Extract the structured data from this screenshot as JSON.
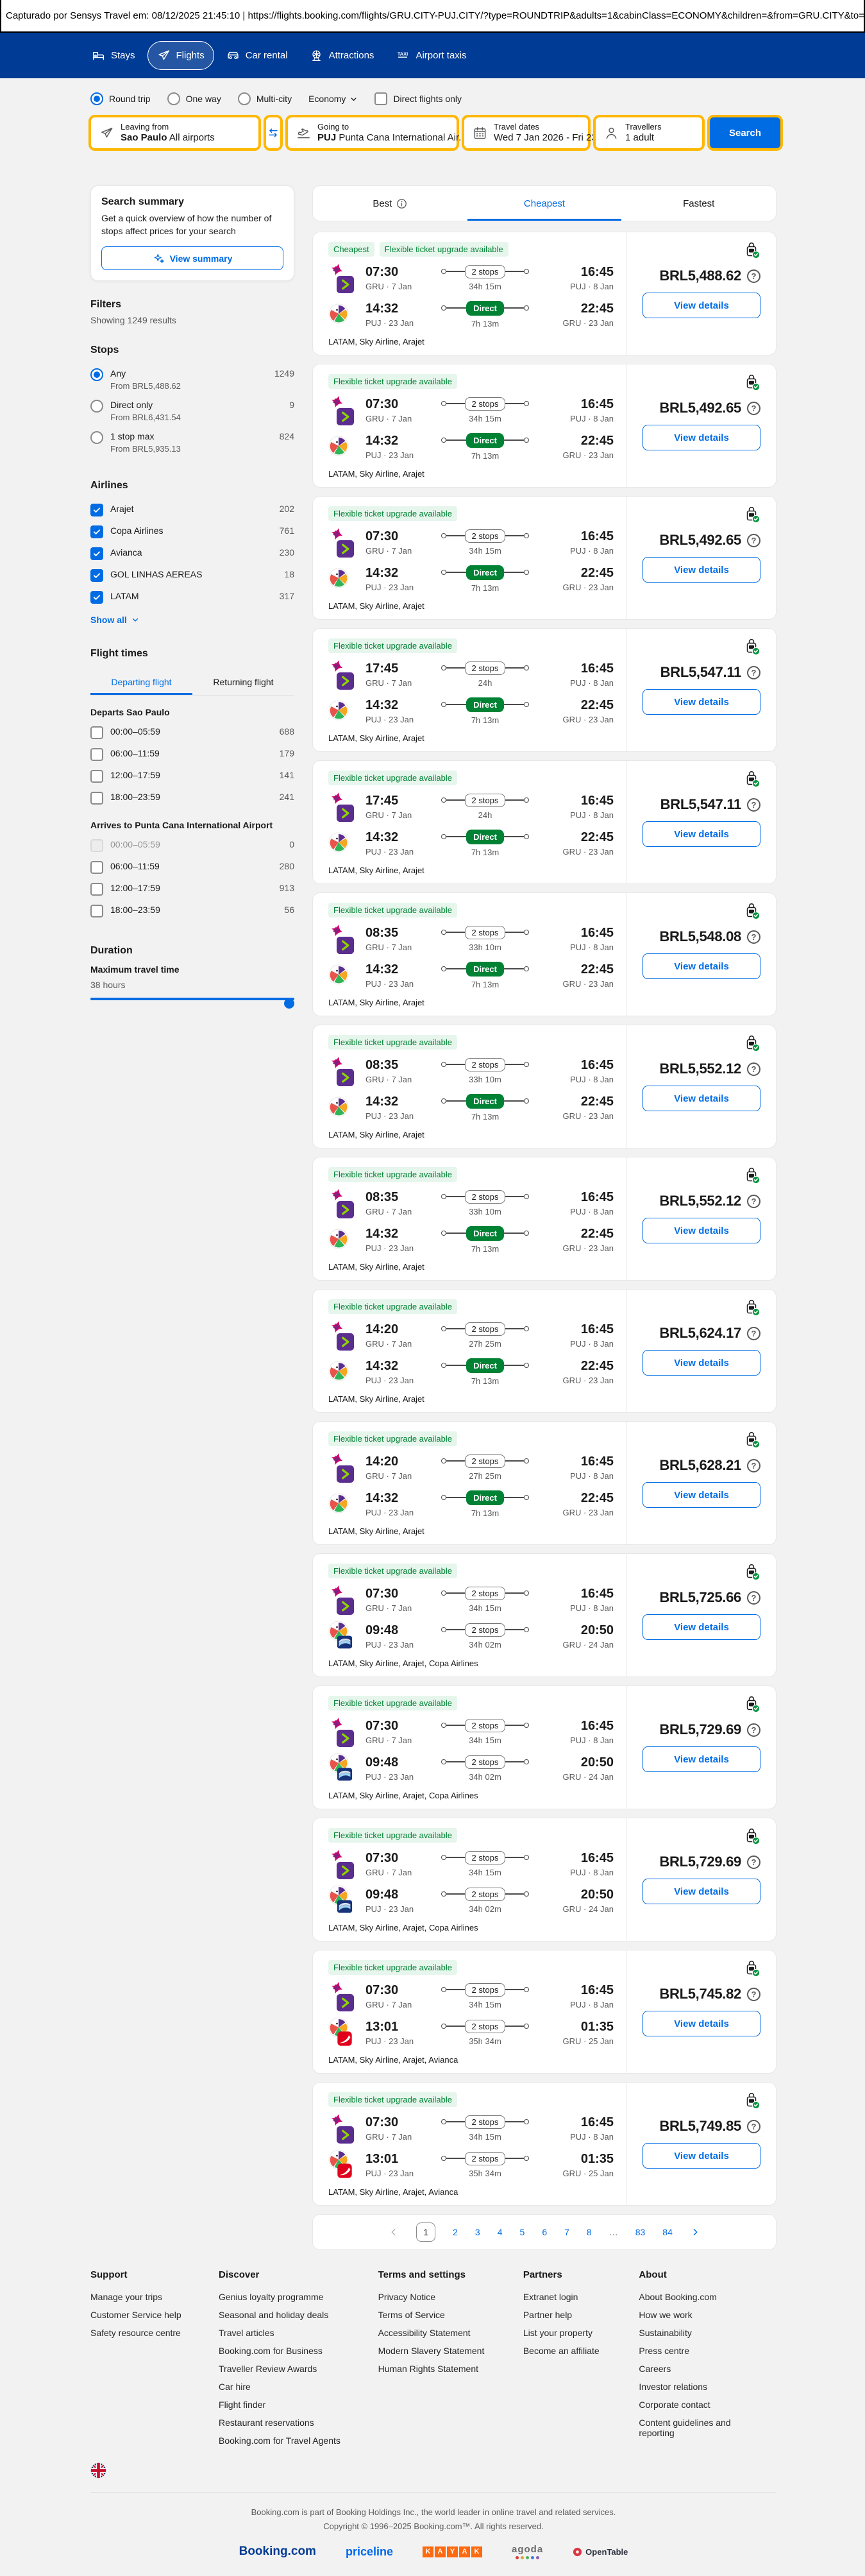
{
  "capture_bar": {
    "text": "Capturado por Sensys Travel em: 08/12/2025 21:45:10  |  https://flights.booking.com/flights/GRU.CITY-PUJ.CITY/?type=ROUNDTRIP&adults=1&cabinClass=ECONOMY&children=&from=GRU.CITY&to=PUJ.CITY"
  },
  "header": {
    "nav": [
      {
        "label": "Stays",
        "icon": "bed",
        "active": false
      },
      {
        "label": "Flights",
        "icon": "plane",
        "active": true
      },
      {
        "label": "Car rental",
        "icon": "car",
        "active": false
      },
      {
        "label": "Attractions",
        "icon": "ferris",
        "active": false
      },
      {
        "label": "Airport taxis",
        "icon": "taxi",
        "active": false
      }
    ]
  },
  "search": {
    "trip_types": [
      {
        "label": "Round trip",
        "selected": true
      },
      {
        "label": "One way",
        "selected": false
      },
      {
        "label": "Multi-city",
        "selected": false
      }
    ],
    "cabin_class": "Economy",
    "direct_only": "Direct flights only",
    "fields": {
      "from": {
        "label": "Leaving from",
        "value_bold": "Sao Paulo",
        "value_rest": "All airports"
      },
      "to": {
        "label": "Going to",
        "value_bold": "PUJ",
        "value_rest": "Punta Cana International Air..."
      },
      "dates": {
        "label": "Travel dates",
        "value": "Wed 7 Jan 2026 - Fri 23 ..."
      },
      "travellers": {
        "label": "Travellers",
        "value": "1 adult"
      }
    },
    "button": "Search"
  },
  "sidebar": {
    "summary_card": {
      "title": "Search summary",
      "description": "Get a quick overview of how the number of stops affect prices for your search",
      "button": "View summary"
    },
    "filters_title": "Filters",
    "results_text": "Showing 1249 results",
    "stops": {
      "title": "Stops",
      "options": [
        {
          "label": "Any",
          "count": "1249",
          "from": "From BRL5,488.62",
          "selected": true
        },
        {
          "label": "Direct only",
          "count": "9",
          "from": "From BRL6,431.54",
          "selected": false
        },
        {
          "label": "1 stop max",
          "count": "824",
          "from": "From BRL5,935.13",
          "selected": false
        }
      ]
    },
    "airlines": {
      "title": "Airlines",
      "show_all": "Show all",
      "items": [
        {
          "label": "Arajet",
          "count": "202"
        },
        {
          "label": "Copa Airlines",
          "count": "761"
        },
        {
          "label": "Avianca",
          "count": "230"
        },
        {
          "label": "GOL LINHAS AEREAS",
          "count": "18"
        },
        {
          "label": "LATAM",
          "count": "317"
        }
      ]
    },
    "flight_times": {
      "title": "Flight times",
      "tabs": [
        {
          "label": "Departing flight",
          "active": true
        },
        {
          "label": "Returning flight",
          "active": false
        }
      ],
      "groups": [
        {
          "title": "Departs Sao Paulo",
          "rows": [
            {
              "label": "00:00–05:59",
              "count": "688",
              "disabled": false
            },
            {
              "label": "06:00–11:59",
              "count": "179",
              "disabled": false
            },
            {
              "label": "12:00–17:59",
              "count": "141",
              "disabled": false
            },
            {
              "label": "18:00–23:59",
              "count": "241",
              "disabled": false
            }
          ]
        },
        {
          "title": "Arrives to Punta Cana International Airport",
          "rows": [
            {
              "label": "00:00–05:59",
              "count": "0",
              "disabled": true
            },
            {
              "label": "06:00–11:59",
              "count": "280",
              "disabled": false
            },
            {
              "label": "12:00–17:59",
              "count": "913",
              "disabled": false
            },
            {
              "label": "18:00–23:59",
              "count": "56",
              "disabled": false
            }
          ]
        }
      ]
    },
    "duration": {
      "title": "Duration",
      "label": "Maximum travel time",
      "value": "38 hours"
    }
  },
  "results": {
    "sort_tabs": [
      {
        "label": "Best",
        "info": true,
        "active": false
      },
      {
        "label": "Cheapest",
        "info": false,
        "active": true
      },
      {
        "label": "Fastest",
        "info": false,
        "active": false
      }
    ],
    "view_details_label": "View details",
    "leg_schema": [
      "logos",
      "dep_time",
      "dep_station_date",
      "stops_label",
      "stops_kind",
      "duration",
      "arr_time",
      "arr_station_date"
    ],
    "cards": [
      {
        "badges": [
          "Cheapest",
          "Flexible ticket upgrade available"
        ],
        "legs": [
          [
            "latam,sky",
            "07:30",
            "GRU · 7 Jan",
            "2 stops",
            "stops",
            "34h 15m",
            "16:45",
            "PUJ · 8 Jan"
          ],
          [
            "arajet",
            "14:32",
            "PUJ · 23 Jan",
            "Direct",
            "direct",
            "7h 13m",
            "22:45",
            "GRU · 23 Jan"
          ]
        ],
        "airlines": "LATAM, Sky Airline, Arajet",
        "price": "BRL5,488.62"
      },
      {
        "badges": [
          "Flexible ticket upgrade available"
        ],
        "legs": [
          [
            "latam,sky",
            "07:30",
            "GRU · 7 Jan",
            "2 stops",
            "stops",
            "34h 15m",
            "16:45",
            "PUJ · 8 Jan"
          ],
          [
            "arajet",
            "14:32",
            "PUJ · 23 Jan",
            "Direct",
            "direct",
            "7h 13m",
            "22:45",
            "GRU · 23 Jan"
          ]
        ],
        "airlines": "LATAM, Sky Airline, Arajet",
        "price": "BRL5,492.65"
      },
      {
        "badges": [
          "Flexible ticket upgrade available"
        ],
        "legs": [
          [
            "latam,sky",
            "07:30",
            "GRU · 7 Jan",
            "2 stops",
            "stops",
            "34h 15m",
            "16:45",
            "PUJ · 8 Jan"
          ],
          [
            "arajet",
            "14:32",
            "PUJ · 23 Jan",
            "Direct",
            "direct",
            "7h 13m",
            "22:45",
            "GRU · 23 Jan"
          ]
        ],
        "airlines": "LATAM, Sky Airline, Arajet",
        "price": "BRL5,492.65"
      },
      {
        "badges": [
          "Flexible ticket upgrade available"
        ],
        "legs": [
          [
            "latam,sky",
            "17:45",
            "GRU · 7 Jan",
            "2 stops",
            "stops",
            "24h",
            "16:45",
            "PUJ · 8 Jan"
          ],
          [
            "arajet",
            "14:32",
            "PUJ · 23 Jan",
            "Direct",
            "direct",
            "7h 13m",
            "22:45",
            "GRU · 23 Jan"
          ]
        ],
        "airlines": "LATAM, Sky Airline, Arajet",
        "price": "BRL5,547.11"
      },
      {
        "badges": [
          "Flexible ticket upgrade available"
        ],
        "legs": [
          [
            "latam,sky",
            "17:45",
            "GRU · 7 Jan",
            "2 stops",
            "stops",
            "24h",
            "16:45",
            "PUJ · 8 Jan"
          ],
          [
            "arajet",
            "14:32",
            "PUJ · 23 Jan",
            "Direct",
            "direct",
            "7h 13m",
            "22:45",
            "GRU · 23 Jan"
          ]
        ],
        "airlines": "LATAM, Sky Airline, Arajet",
        "price": "BRL5,547.11"
      },
      {
        "badges": [
          "Flexible ticket upgrade available"
        ],
        "legs": [
          [
            "latam,sky",
            "08:35",
            "GRU · 7 Jan",
            "2 stops",
            "stops",
            "33h 10m",
            "16:45",
            "PUJ · 8 Jan"
          ],
          [
            "arajet",
            "14:32",
            "PUJ · 23 Jan",
            "Direct",
            "direct",
            "7h 13m",
            "22:45",
            "GRU · 23 Jan"
          ]
        ],
        "airlines": "LATAM, Sky Airline, Arajet",
        "price": "BRL5,548.08"
      },
      {
        "badges": [
          "Flexible ticket upgrade available"
        ],
        "legs": [
          [
            "latam,sky",
            "08:35",
            "GRU · 7 Jan",
            "2 stops",
            "stops",
            "33h 10m",
            "16:45",
            "PUJ · 8 Jan"
          ],
          [
            "arajet",
            "14:32",
            "PUJ · 23 Jan",
            "Direct",
            "direct",
            "7h 13m",
            "22:45",
            "GRU · 23 Jan"
          ]
        ],
        "airlines": "LATAM, Sky Airline, Arajet",
        "price": "BRL5,552.12"
      },
      {
        "badges": [
          "Flexible ticket upgrade available"
        ],
        "legs": [
          [
            "latam,sky",
            "08:35",
            "GRU · 7 Jan",
            "2 stops",
            "stops",
            "33h 10m",
            "16:45",
            "PUJ · 8 Jan"
          ],
          [
            "arajet",
            "14:32",
            "PUJ · 23 Jan",
            "Direct",
            "direct",
            "7h 13m",
            "22:45",
            "GRU · 23 Jan"
          ]
        ],
        "airlines": "LATAM, Sky Airline, Arajet",
        "price": "BRL5,552.12"
      },
      {
        "badges": [
          "Flexible ticket upgrade available"
        ],
        "legs": [
          [
            "latam,sky",
            "14:20",
            "GRU · 7 Jan",
            "2 stops",
            "stops",
            "27h 25m",
            "16:45",
            "PUJ · 8 Jan"
          ],
          [
            "arajet",
            "14:32",
            "PUJ · 23 Jan",
            "Direct",
            "direct",
            "7h 13m",
            "22:45",
            "GRU · 23 Jan"
          ]
        ],
        "airlines": "LATAM, Sky Airline, Arajet",
        "price": "BRL5,624.17"
      },
      {
        "badges": [
          "Flexible ticket upgrade available"
        ],
        "legs": [
          [
            "latam,sky",
            "14:20",
            "GRU · 7 Jan",
            "2 stops",
            "stops",
            "27h 25m",
            "16:45",
            "PUJ · 8 Jan"
          ],
          [
            "arajet",
            "14:32",
            "PUJ · 23 Jan",
            "Direct",
            "direct",
            "7h 13m",
            "22:45",
            "GRU · 23 Jan"
          ]
        ],
        "airlines": "LATAM, Sky Airline, Arajet",
        "price": "BRL5,628.21"
      },
      {
        "badges": [
          "Flexible ticket upgrade available"
        ],
        "legs": [
          [
            "latam,sky",
            "07:30",
            "GRU · 7 Jan",
            "2 stops",
            "stops",
            "34h 15m",
            "16:45",
            "PUJ · 8 Jan"
          ],
          [
            "arajet,copa",
            "09:48",
            "PUJ · 23 Jan",
            "2 stops",
            "stops",
            "34h 02m",
            "20:50",
            "GRU · 24 Jan"
          ]
        ],
        "airlines": "LATAM, Sky Airline, Arajet, Copa Airlines",
        "price": "BRL5,725.66"
      },
      {
        "badges": [
          "Flexible ticket upgrade available"
        ],
        "legs": [
          [
            "latam,sky",
            "07:30",
            "GRU · 7 Jan",
            "2 stops",
            "stops",
            "34h 15m",
            "16:45",
            "PUJ · 8 Jan"
          ],
          [
            "arajet,copa",
            "09:48",
            "PUJ · 23 Jan",
            "2 stops",
            "stops",
            "34h 02m",
            "20:50",
            "GRU · 24 Jan"
          ]
        ],
        "airlines": "LATAM, Sky Airline, Arajet, Copa Airlines",
        "price": "BRL5,729.69"
      },
      {
        "badges": [
          "Flexible ticket upgrade available"
        ],
        "legs": [
          [
            "latam,sky",
            "07:30",
            "GRU · 7 Jan",
            "2 stops",
            "stops",
            "34h 15m",
            "16:45",
            "PUJ · 8 Jan"
          ],
          [
            "arajet,copa",
            "09:48",
            "PUJ · 23 Jan",
            "2 stops",
            "stops",
            "34h 02m",
            "20:50",
            "GRU · 24 Jan"
          ]
        ],
        "airlines": "LATAM, Sky Airline, Arajet, Copa Airlines",
        "price": "BRL5,729.69"
      },
      {
        "badges": [
          "Flexible ticket upgrade available"
        ],
        "legs": [
          [
            "latam,sky",
            "07:30",
            "GRU · 7 Jan",
            "2 stops",
            "stops",
            "34h 15m",
            "16:45",
            "PUJ · 8 Jan"
          ],
          [
            "arajet,avianca",
            "13:01",
            "PUJ · 23 Jan",
            "2 stops",
            "stops",
            "35h 34m",
            "01:35",
            "GRU · 25 Jan"
          ]
        ],
        "airlines": "LATAM, Sky Airline, Arajet, Avianca",
        "price": "BRL5,745.82"
      },
      {
        "badges": [
          "Flexible ticket upgrade available"
        ],
        "legs": [
          [
            "latam,sky",
            "07:30",
            "GRU · 7 Jan",
            "2 stops",
            "stops",
            "34h 15m",
            "16:45",
            "PUJ · 8 Jan"
          ],
          [
            "arajet,avianca",
            "13:01",
            "PUJ · 23 Jan",
            "2 stops",
            "stops",
            "35h 34m",
            "01:35",
            "GRU · 25 Jan"
          ]
        ],
        "airlines": "LATAM, Sky Airline, Arajet, Avianca",
        "price": "BRL5,749.85"
      }
    ],
    "pagination": {
      "prev_enabled": false,
      "current": "1",
      "pages": [
        "1",
        "2",
        "3",
        "4",
        "5",
        "6",
        "7",
        "8",
        "…",
        "83",
        "84"
      ]
    }
  },
  "footer": {
    "columns": [
      {
        "title": "Support",
        "links": [
          "Manage your trips",
          "Customer Service help",
          "Safety resource centre"
        ]
      },
      {
        "title": "Discover",
        "links": [
          "Genius loyalty programme",
          "Seasonal and holiday deals",
          "Travel articles",
          "Booking.com for Business",
          "Traveller Review Awards",
          "Car hire",
          "Flight finder",
          "Restaurant reservations",
          "Booking.com for Travel Agents"
        ]
      },
      {
        "title": "Terms and settings",
        "links": [
          "Privacy Notice",
          "Terms of Service",
          "Accessibility Statement",
          "Modern Slavery Statement",
          "Human Rights Statement"
        ]
      },
      {
        "title": "Partners",
        "links": [
          "Extranet login",
          "Partner help",
          "List your property",
          "Become an affiliate"
        ]
      },
      {
        "title": "About",
        "links": [
          "About Booking.com",
          "How we work",
          "Sustainability",
          "Press centre",
          "Careers",
          "Investor relations",
          "Corporate contact",
          "Content guidelines and reporting"
        ]
      }
    ]
  },
  "bottom": {
    "legal1": "Booking.com is part of Booking Holdings Inc., the world leader in online travel and related services.",
    "legal2": "Copyright © 1996–2025 Booking.com™. All rights reserved.",
    "brands": [
      "Booking.com",
      "priceline",
      "KAYAK",
      "agoda",
      "OpenTable"
    ]
  }
}
